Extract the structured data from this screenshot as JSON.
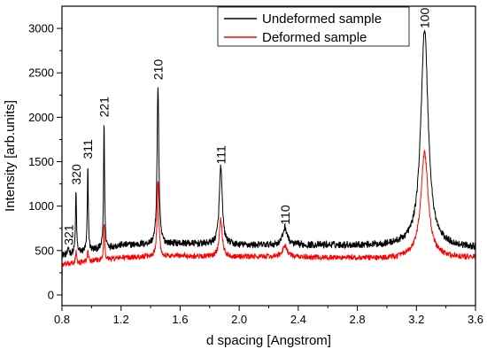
{
  "chart_data": {
    "type": "line",
    "title": "",
    "xlabel": "d spacing [Angstrom]",
    "ylabel": "Intensity [arb.units]",
    "xlim": [
      0.8,
      3.6
    ],
    "ylim": [
      -120,
      3250
    ],
    "x_ticks": [
      0.8,
      1.2,
      1.6,
      2.0,
      2.4,
      2.8,
      3.2,
      3.6
    ],
    "x_tick_labels": [
      "0.8",
      "1.2",
      "1.6",
      "2.0",
      "2.4",
      "2.8",
      "3.2",
      "3.6"
    ],
    "y_ticks": [
      0,
      500,
      1000,
      1500,
      2000,
      2500,
      3000
    ],
    "y_tick_labels": [
      "0",
      "500",
      "1000",
      "1500",
      "2000",
      "2500",
      "3000"
    ],
    "grid": false,
    "legend_position": "top-right",
    "series": [
      {
        "name": "Undeformed sample",
        "color": "#000000",
        "background": [
          [
            0.8,
            450
          ],
          [
            0.85,
            460
          ],
          [
            1.0,
            500
          ],
          [
            1.2,
            560
          ],
          [
            1.4,
            570
          ],
          [
            1.6,
            580
          ],
          [
            1.8,
            570
          ],
          [
            2.0,
            560
          ],
          [
            2.2,
            560
          ],
          [
            2.6,
            560
          ],
          [
            3.0,
            555
          ],
          [
            3.15,
            560
          ],
          [
            3.6,
            530
          ]
        ],
        "peaks": [
          {
            "center": 0.845,
            "height": 70,
            "width": 0.004
          },
          {
            "center": 0.895,
            "height": 700,
            "width": 0.004
          },
          {
            "center": 0.975,
            "height": 950,
            "width": 0.004
          },
          {
            "center": 1.085,
            "height": 1430,
            "width": 0.004
          },
          {
            "center": 1.45,
            "height": 1800,
            "width": 0.007
          },
          {
            "center": 1.875,
            "height": 880,
            "width": 0.012
          },
          {
            "center": 2.31,
            "height": 200,
            "width": 0.018
          },
          {
            "center": 3.255,
            "height": 2440,
            "width": 0.03
          }
        ],
        "noise": 40
      },
      {
        "name": "Deformed sample",
        "color": "#ff0000",
        "background": [
          [
            0.8,
            340
          ],
          [
            0.85,
            350
          ],
          [
            1.0,
            380
          ],
          [
            1.2,
            420
          ],
          [
            1.4,
            430
          ],
          [
            1.6,
            440
          ],
          [
            1.8,
            430
          ],
          [
            2.0,
            430
          ],
          [
            2.2,
            430
          ],
          [
            2.6,
            420
          ],
          [
            3.0,
            410
          ],
          [
            3.15,
            420
          ],
          [
            3.6,
            420
          ]
        ],
        "peaks": [
          {
            "center": 0.895,
            "height": 130,
            "width": 0.004
          },
          {
            "center": 0.975,
            "height": 150,
            "width": 0.004
          },
          {
            "center": 1.085,
            "height": 440,
            "width": 0.004
          },
          {
            "center": 1.45,
            "height": 870,
            "width": 0.007
          },
          {
            "center": 1.875,
            "height": 430,
            "width": 0.012
          },
          {
            "center": 2.31,
            "height": 130,
            "width": 0.018
          },
          {
            "center": 3.255,
            "height": 1180,
            "width": 0.03
          }
        ],
        "noise": 30,
        "start_drop": true
      }
    ],
    "annotations": [
      {
        "text": "321",
        "x": 0.845,
        "y": 560
      },
      {
        "text": "320",
        "x": 0.895,
        "y": 1240
      },
      {
        "text": "311",
        "x": 0.975,
        "y": 1530
      },
      {
        "text": "221",
        "x": 1.085,
        "y": 2000
      },
      {
        "text": "210",
        "x": 1.45,
        "y": 2420
      },
      {
        "text": "111",
        "x": 1.875,
        "y": 1470
      },
      {
        "text": "110",
        "x": 2.31,
        "y": 790
      },
      {
        "text": "100",
        "x": 3.255,
        "y": 3000
      }
    ]
  }
}
